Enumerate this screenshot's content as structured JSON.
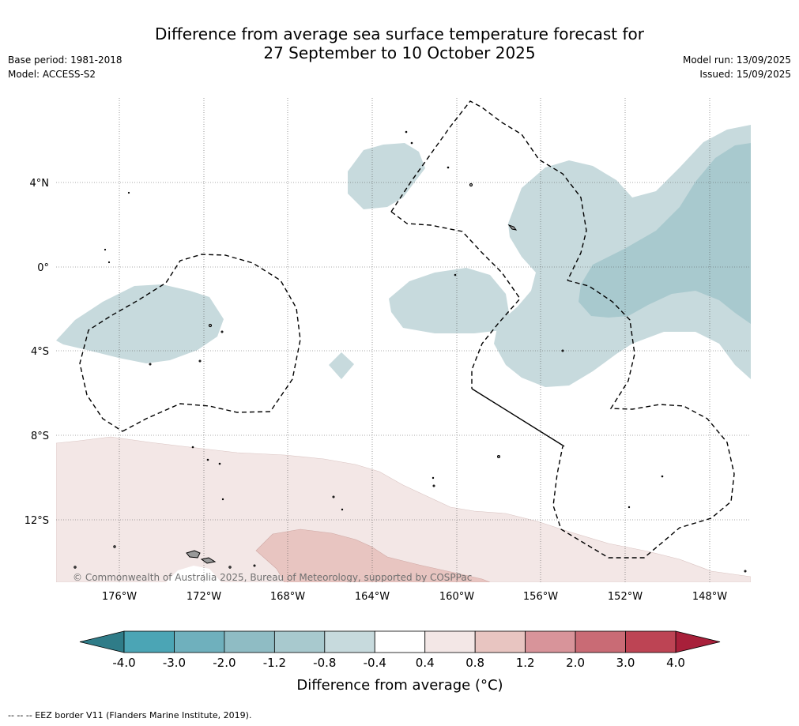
{
  "title": {
    "line1": "Difference from average sea surface temperature forecast for",
    "line2": "27 September to 10 October 2025"
  },
  "meta_left": {
    "base_period": "Base period: 1981-2018",
    "model": "Model: ACCESS-S2"
  },
  "meta_right": {
    "model_run": "Model run: 13/09/2025",
    "issued": "Issued: 15/09/2025"
  },
  "map": {
    "lat_labels": [
      "4°N",
      "0°",
      "4°S",
      "8°S",
      "12°S"
    ],
    "lon_labels": [
      "176°W",
      "172°W",
      "168°W",
      "164°W",
      "160°W",
      "156°W",
      "152°W",
      "148°W"
    ],
    "copyright": "© Commonwealth of Australia 2025, Bureau of Meteorology, supported by COSPPac"
  },
  "colorbar": {
    "ticks": [
      "-4.0",
      "-3.0",
      "-2.0",
      "-1.2",
      "-0.8",
      "-0.4",
      "0.4",
      "0.8",
      "1.2",
      "2.0",
      "3.0",
      "4.0"
    ],
    "colors": [
      "#4ba5b5",
      "#6fb0bd",
      "#8fbcc4",
      "#a8c9ce",
      "#c7dadd",
      "#ffffff",
      "#f3e7e6",
      "#e8c5c1",
      "#d8949a",
      "#c96b75",
      "#bd4454"
    ],
    "under_color": "#2f7c88",
    "over_color": "#a8203a",
    "label": "Difference from average (°C)"
  },
  "footer": {
    "legend": "--  --  -- EEZ border V11 (Flanders Marine Institute, 2019)."
  }
}
